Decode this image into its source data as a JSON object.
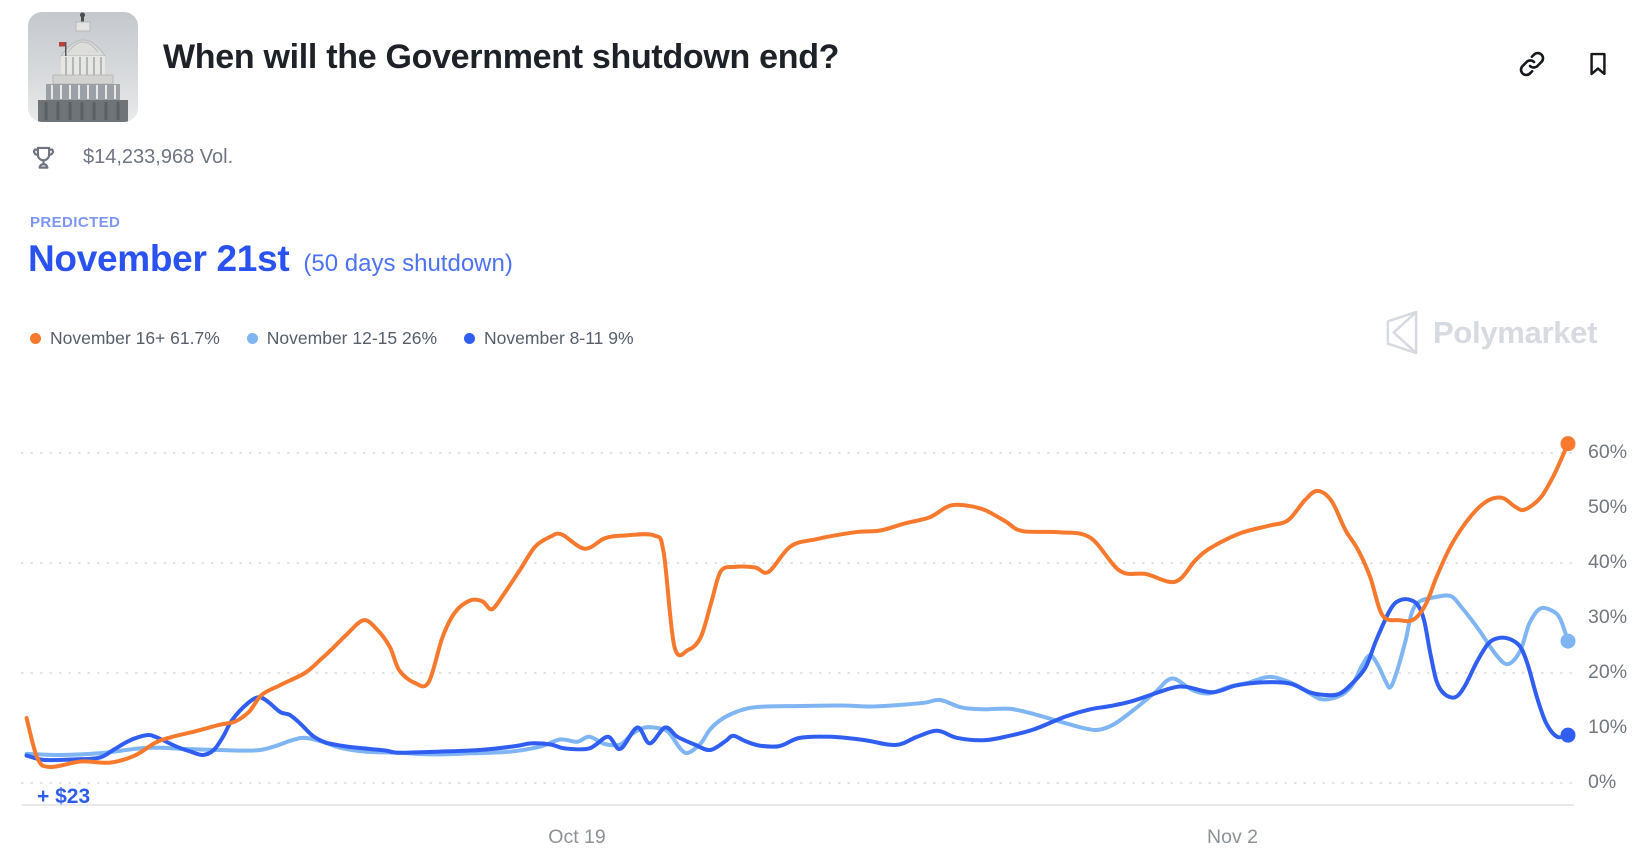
{
  "header": {
    "title": "When will the Government shutdown end?",
    "volume": "$14,233,968 Vol.",
    "actions": {
      "link": "copy-link",
      "bookmark": "bookmark"
    }
  },
  "predicted": {
    "label": "PREDICTED",
    "value": "November 21st",
    "annotation": "(50 days shutdown)"
  },
  "legend": {
    "items": [
      {
        "label": "November 16+",
        "value": "61.7%",
        "color": "#f6792e"
      },
      {
        "label": "November 12-15",
        "value": "26%",
        "color": "#7fb5f3"
      },
      {
        "label": "November 8-11",
        "value": "9%",
        "color": "#2f5ef0"
      }
    ]
  },
  "watermark": {
    "text": "Polymarket",
    "color": "#d8dae2"
  },
  "chart_data": {
    "type": "line",
    "annotation_bottom_left": "+ $23",
    "x_axis": {
      "ticks": [
        {
          "label": "Oct 19",
          "pos": 0.359
        },
        {
          "label": "Nov 2",
          "pos": 0.783
        }
      ]
    },
    "y_axis": {
      "unit": "%",
      "range": [
        0,
        65
      ],
      "tick_labels": [
        "60%",
        "50%",
        "40%",
        "30%",
        "20%",
        "10%",
        "0%"
      ],
      "tick_pcts": [
        60,
        50,
        40,
        30,
        20,
        10,
        0
      ],
      "gridline_pcts": [
        60,
        40,
        20,
        0
      ],
      "position": "right"
    },
    "series": [
      {
        "name": "November 16+",
        "current_pct": 61.7,
        "color": "#f6792e",
        "points": [
          [
            0.003,
            11.8
          ],
          [
            0.01,
            4.5
          ],
          [
            0.018,
            2.9
          ],
          [
            0.038,
            3.9
          ],
          [
            0.057,
            3.7
          ],
          [
            0.073,
            5
          ],
          [
            0.086,
            7.3
          ],
          [
            0.096,
            8.3
          ],
          [
            0.112,
            9.4
          ],
          [
            0.128,
            10.6
          ],
          [
            0.138,
            11.2
          ],
          [
            0.147,
            13
          ],
          [
            0.155,
            16
          ],
          [
            0.167,
            17.8
          ],
          [
            0.183,
            20
          ],
          [
            0.193,
            22.4
          ],
          [
            0.201,
            24.5
          ],
          [
            0.21,
            27
          ],
          [
            0.221,
            29.6
          ],
          [
            0.23,
            27.8
          ],
          [
            0.238,
            24.7
          ],
          [
            0.244,
            20.5
          ],
          [
            0.254,
            18.2
          ],
          [
            0.263,
            18.3
          ],
          [
            0.272,
            26.5
          ],
          [
            0.28,
            31
          ],
          [
            0.29,
            33.2
          ],
          [
            0.298,
            33
          ],
          [
            0.304,
            31.6
          ],
          [
            0.312,
            34.5
          ],
          [
            0.322,
            38.7
          ],
          [
            0.332,
            43
          ],
          [
            0.342,
            44.8
          ],
          [
            0.349,
            45.2
          ],
          [
            0.364,
            42.6
          ],
          [
            0.377,
            44.5
          ],
          [
            0.39,
            45
          ],
          [
            0.409,
            45
          ],
          [
            0.415,
            42
          ],
          [
            0.422,
            24.8
          ],
          [
            0.431,
            24.2
          ],
          [
            0.439,
            26.5
          ],
          [
            0.446,
            33
          ],
          [
            0.452,
            38.5
          ],
          [
            0.461,
            39.3
          ],
          [
            0.474,
            39.2
          ],
          [
            0.483,
            38.4
          ],
          [
            0.497,
            43
          ],
          [
            0.513,
            44.3
          ],
          [
            0.539,
            45.6
          ],
          [
            0.555,
            45.9
          ],
          [
            0.571,
            47.2
          ],
          [
            0.587,
            48.3
          ],
          [
            0.6,
            50.4
          ],
          [
            0.612,
            50.4
          ],
          [
            0.623,
            49.6
          ],
          [
            0.636,
            47.6
          ],
          [
            0.647,
            45.8
          ],
          [
            0.671,
            45.6
          ],
          [
            0.691,
            44.6
          ],
          [
            0.71,
            38.6
          ],
          [
            0.727,
            38
          ],
          [
            0.746,
            36.6
          ],
          [
            0.759,
            40.5
          ],
          [
            0.768,
            42.6
          ],
          [
            0.788,
            45.4
          ],
          [
            0.807,
            46.8
          ],
          [
            0.819,
            47.8
          ],
          [
            0.83,
            51.5
          ],
          [
            0.838,
            53.1
          ],
          [
            0.847,
            51.3
          ],
          [
            0.856,
            46
          ],
          [
            0.864,
            42.5
          ],
          [
            0.872,
            37.5
          ],
          [
            0.88,
            30.5
          ],
          [
            0.891,
            29.6
          ],
          [
            0.9,
            29.7
          ],
          [
            0.908,
            32.5
          ],
          [
            0.915,
            37.5
          ],
          [
            0.924,
            43
          ],
          [
            0.933,
            47
          ],
          [
            0.942,
            50
          ],
          [
            0.95,
            51.6
          ],
          [
            0.958,
            51.8
          ],
          [
            0.966,
            50.2
          ],
          [
            0.972,
            49.7
          ],
          [
            0.982,
            51.8
          ],
          [
            0.99,
            55.5
          ],
          [
            0.995,
            58.5
          ],
          [
            1,
            61.7
          ]
        ]
      },
      {
        "name": "November 12-15",
        "current_pct": 26,
        "color": "#7fb5f3",
        "points": [
          [
            0.003,
            5.3
          ],
          [
            0.025,
            5.1
          ],
          [
            0.05,
            5.4
          ],
          [
            0.076,
            6.3
          ],
          [
            0.089,
            6.4
          ],
          [
            0.105,
            6.2
          ],
          [
            0.128,
            6
          ],
          [
            0.154,
            6
          ],
          [
            0.175,
            7.8
          ],
          [
            0.183,
            8.2
          ],
          [
            0.193,
            7.6
          ],
          [
            0.206,
            6.4
          ],
          [
            0.222,
            5.7
          ],
          [
            0.244,
            5.5
          ],
          [
            0.264,
            5.2
          ],
          [
            0.29,
            5.4
          ],
          [
            0.316,
            5.7
          ],
          [
            0.335,
            6.6
          ],
          [
            0.348,
            7.9
          ],
          [
            0.359,
            7.5
          ],
          [
            0.367,
            8.4
          ],
          [
            0.377,
            7.1
          ],
          [
            0.387,
            7
          ],
          [
            0.395,
            9
          ],
          [
            0.403,
            10.1
          ],
          [
            0.411,
            10
          ],
          [
            0.418,
            9.3
          ],
          [
            0.426,
            6.2
          ],
          [
            0.431,
            5.5
          ],
          [
            0.439,
            7.2
          ],
          [
            0.445,
            9.7
          ],
          [
            0.452,
            11.5
          ],
          [
            0.46,
            12.7
          ],
          [
            0.47,
            13.6
          ],
          [
            0.481,
            13.9
          ],
          [
            0.503,
            14
          ],
          [
            0.529,
            14.1
          ],
          [
            0.549,
            13.9
          ],
          [
            0.568,
            14.2
          ],
          [
            0.584,
            14.6
          ],
          [
            0.594,
            15.1
          ],
          [
            0.608,
            13.7
          ],
          [
            0.623,
            13.4
          ],
          [
            0.639,
            13.5
          ],
          [
            0.655,
            12.5
          ],
          [
            0.671,
            11.2
          ],
          [
            0.688,
            9.9
          ],
          [
            0.697,
            9.7
          ],
          [
            0.707,
            10.8
          ],
          [
            0.72,
            13.5
          ],
          [
            0.733,
            16.5
          ],
          [
            0.744,
            19
          ],
          [
            0.757,
            16.9
          ],
          [
            0.768,
            16.3
          ],
          [
            0.781,
            17.5
          ],
          [
            0.794,
            18.3
          ],
          [
            0.807,
            19.3
          ],
          [
            0.821,
            18.2
          ],
          [
            0.833,
            16.3
          ],
          [
            0.841,
            15.2
          ],
          [
            0.852,
            15.8
          ],
          [
            0.86,
            17.6
          ],
          [
            0.867,
            21.5
          ],
          [
            0.872,
            23.2
          ],
          [
            0.877,
            21.5
          ],
          [
            0.882,
            18.5
          ],
          [
            0.885,
            17.4
          ],
          [
            0.889,
            20
          ],
          [
            0.895,
            26
          ],
          [
            0.899,
            31
          ],
          [
            0.904,
            33
          ],
          [
            0.914,
            33.8
          ],
          [
            0.924,
            34
          ],
          [
            0.931,
            32
          ],
          [
            0.942,
            28
          ],
          [
            0.953,
            23.5
          ],
          [
            0.961,
            21.6
          ],
          [
            0.969,
            24
          ],
          [
            0.975,
            29
          ],
          [
            0.982,
            31.7
          ],
          [
            0.99,
            31.3
          ],
          [
            0.995,
            29.8
          ],
          [
            1,
            25.8
          ]
        ]
      },
      {
        "name": "November 8-11",
        "current_pct": 9,
        "color": "#2f5ef0",
        "points": [
          [
            0.003,
            5
          ],
          [
            0.014,
            4.2
          ],
          [
            0.034,
            4.3
          ],
          [
            0.05,
            4.6
          ],
          [
            0.059,
            6
          ],
          [
            0.068,
            7.5
          ],
          [
            0.076,
            8.4
          ],
          [
            0.083,
            8.7
          ],
          [
            0.091,
            7.8
          ],
          [
            0.1,
            6.6
          ],
          [
            0.109,
            5.7
          ],
          [
            0.117,
            5.1
          ],
          [
            0.124,
            6
          ],
          [
            0.13,
            8.4
          ],
          [
            0.136,
            11.5
          ],
          [
            0.146,
            14.5
          ],
          [
            0.153,
            15.6
          ],
          [
            0.159,
            14.8
          ],
          [
            0.167,
            12.9
          ],
          [
            0.173,
            12.4
          ],
          [
            0.18,
            10.8
          ],
          [
            0.188,
            8.6
          ],
          [
            0.196,
            7.4
          ],
          [
            0.206,
            6.8
          ],
          [
            0.217,
            6.4
          ],
          [
            0.235,
            5.9
          ],
          [
            0.244,
            5.5
          ],
          [
            0.27,
            5.7
          ],
          [
            0.296,
            6
          ],
          [
            0.319,
            6.7
          ],
          [
            0.329,
            7.2
          ],
          [
            0.342,
            7
          ],
          [
            0.351,
            6.3
          ],
          [
            0.367,
            6.3
          ],
          [
            0.379,
            8.4
          ],
          [
            0.387,
            6.2
          ],
          [
            0.398,
            10.1
          ],
          [
            0.406,
            7.2
          ],
          [
            0.416,
            10.1
          ],
          [
            0.424,
            8.4
          ],
          [
            0.435,
            7
          ],
          [
            0.445,
            6
          ],
          [
            0.455,
            7.6
          ],
          [
            0.46,
            8.6
          ],
          [
            0.468,
            7.6
          ],
          [
            0.477,
            6.8
          ],
          [
            0.49,
            6.7
          ],
          [
            0.503,
            8.2
          ],
          [
            0.523,
            8.4
          ],
          [
            0.545,
            7.8
          ],
          [
            0.565,
            6.9
          ],
          [
            0.579,
            8.4
          ],
          [
            0.592,
            9.5
          ],
          [
            0.605,
            8.2
          ],
          [
            0.623,
            7.8
          ],
          [
            0.639,
            8.6
          ],
          [
            0.655,
            9.8
          ],
          [
            0.675,
            12.1
          ],
          [
            0.691,
            13.4
          ],
          [
            0.704,
            14
          ],
          [
            0.717,
            14.8
          ],
          [
            0.733,
            16.3
          ],
          [
            0.744,
            17.3
          ],
          [
            0.753,
            17.5
          ],
          [
            0.77,
            16.5
          ],
          [
            0.785,
            17.7
          ],
          [
            0.802,
            18.3
          ],
          [
            0.82,
            18.1
          ],
          [
            0.833,
            16.5
          ],
          [
            0.843,
            16
          ],
          [
            0.852,
            16.2
          ],
          [
            0.86,
            18
          ],
          [
            0.869,
            21
          ],
          [
            0.876,
            26
          ],
          [
            0.885,
            31.5
          ],
          [
            0.891,
            33.2
          ],
          [
            0.898,
            33.3
          ],
          [
            0.903,
            32.3
          ],
          [
            0.907,
            29.5
          ],
          [
            0.911,
            23.5
          ],
          [
            0.915,
            18.5
          ],
          [
            0.92,
            16.2
          ],
          [
            0.927,
            15.6
          ],
          [
            0.933,
            17.5
          ],
          [
            0.941,
            22
          ],
          [
            0.948,
            25.2
          ],
          [
            0.954,
            26.3
          ],
          [
            0.962,
            26.2
          ],
          [
            0.969,
            24.8
          ],
          [
            0.974,
            21.5
          ],
          [
            0.98,
            15.5
          ],
          [
            0.986,
            10.8
          ],
          [
            0.993,
            8.4
          ],
          [
            1,
            8.7
          ]
        ]
      }
    ]
  },
  "colors": {
    "accent_blue": "#2a52f0",
    "grid": "#e0e2e6",
    "axis_line": "#e7e9ec",
    "y_label": "#71777f",
    "x_label": "#8c9196",
    "legend_text": "#555e69",
    "annotation_blue": "#2c5ce8"
  }
}
